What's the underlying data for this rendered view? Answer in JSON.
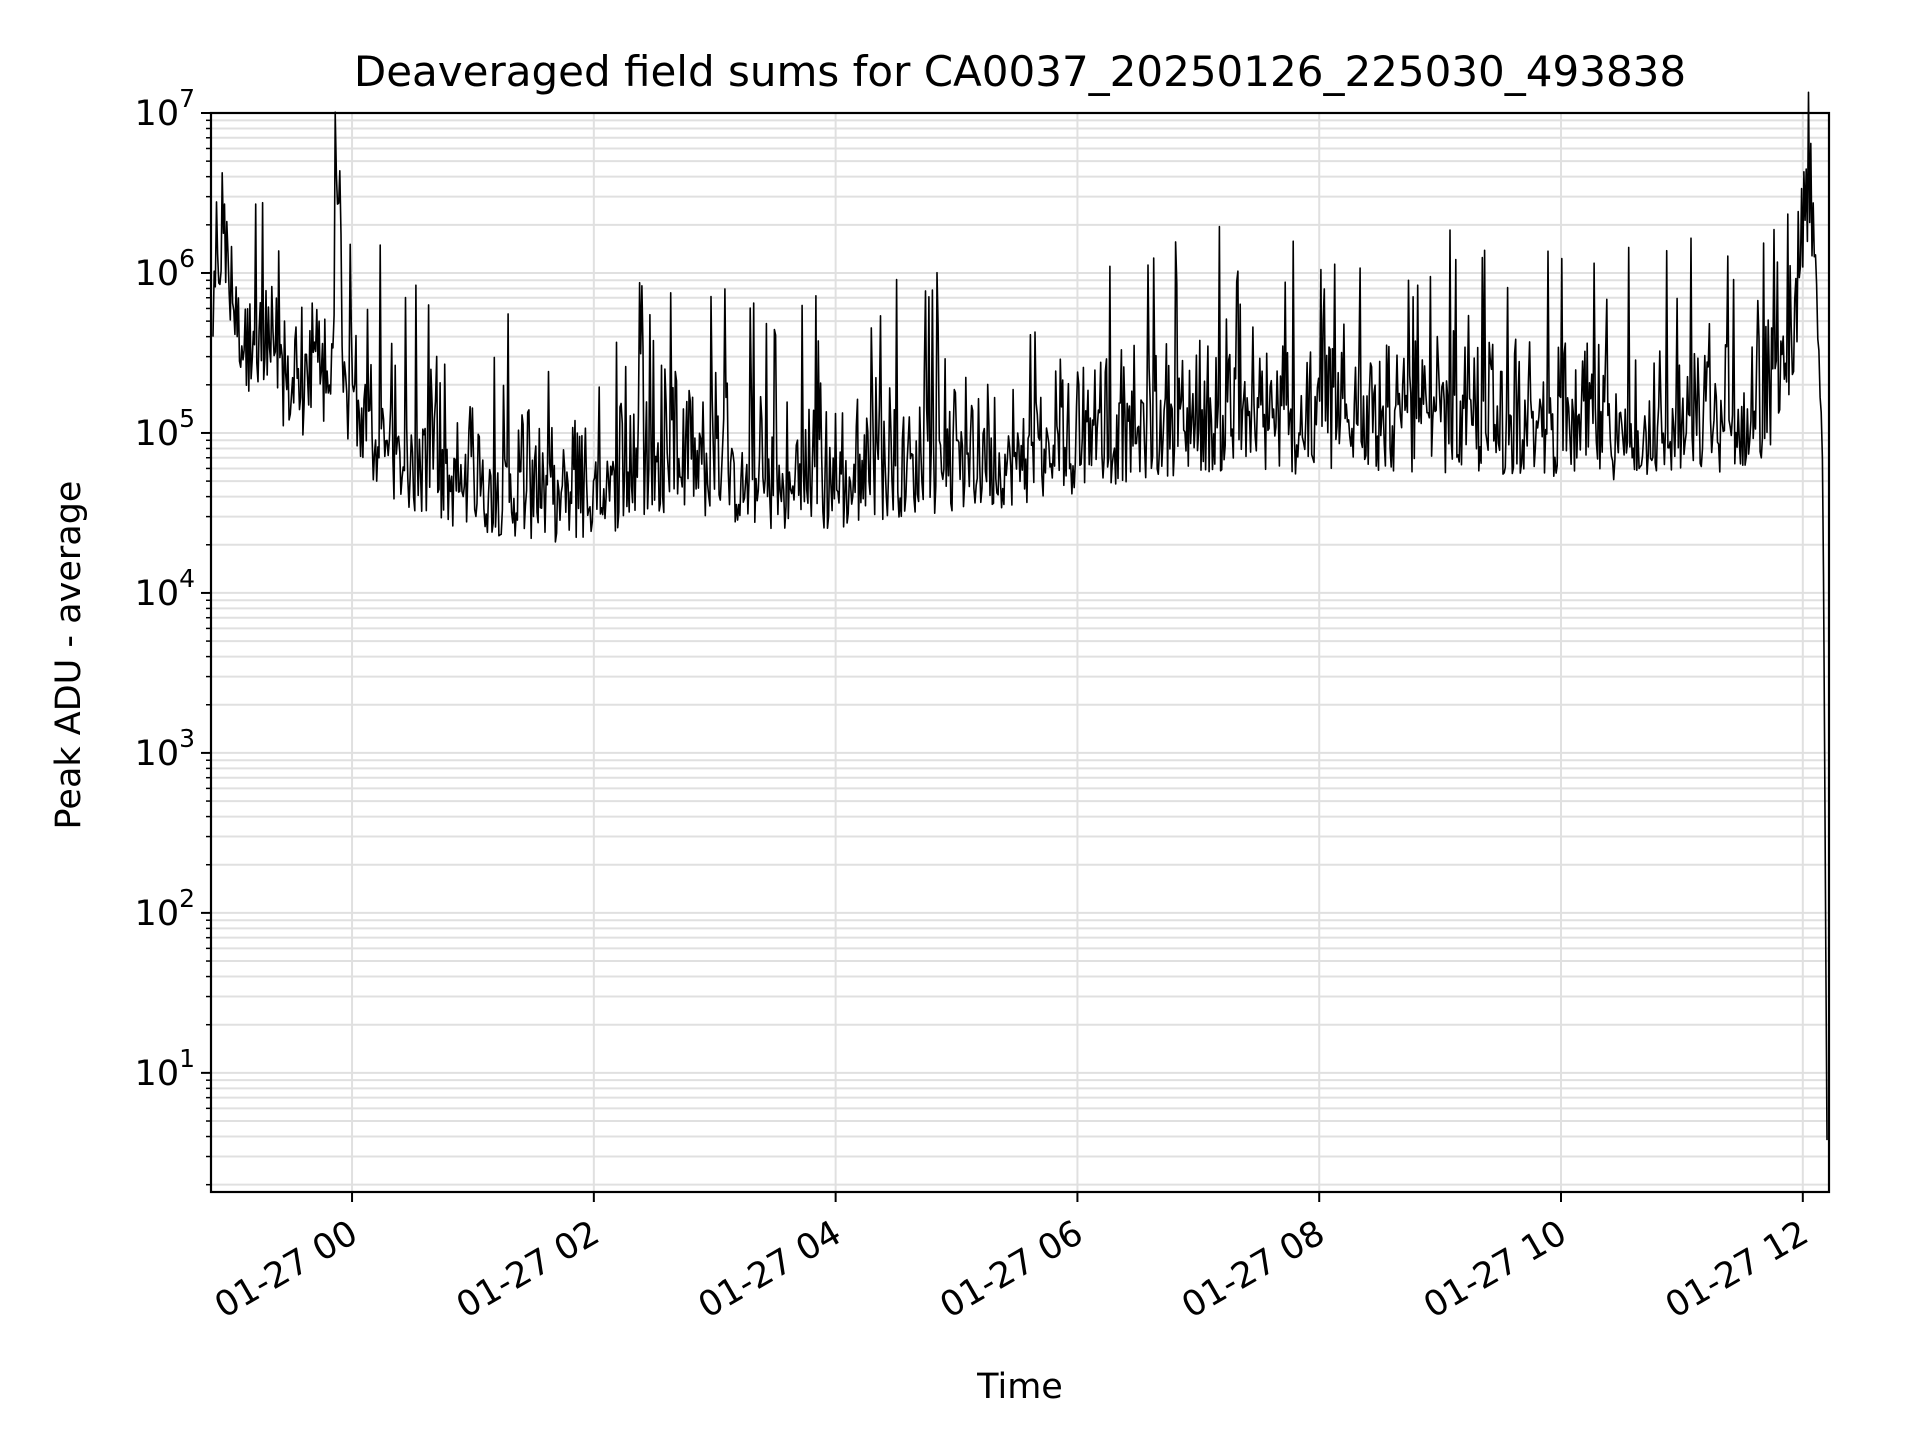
{
  "chart_data": {
    "type": "line",
    "title": "Deaveraged field sums for CA0037_20250126_225030_493838",
    "xlabel": "Time",
    "ylabel": "Peak ADU - average",
    "yscale": "log",
    "ylim": [
      1.8,
      10000000
    ],
    "xlim": [
      "2025-01-26 22:50",
      "2025-01-27 12:13"
    ],
    "x_ticks": [
      "01-27 00",
      "01-27 02",
      "01-27 04",
      "01-27 06",
      "01-27 08",
      "01-27 10",
      "01-27 12"
    ],
    "x_tick_values": [
      "2025-01-27 00:00",
      "2025-01-27 02:00",
      "2025-01-27 04:00",
      "2025-01-27 06:00",
      "2025-01-27 08:00",
      "2025-01-27 10:00",
      "2025-01-27 12:00"
    ],
    "y_ticks": [
      {
        "base": "10",
        "exp": "1",
        "value": 10
      },
      {
        "base": "10",
        "exp": "2",
        "value": 100
      },
      {
        "base": "10",
        "exp": "3",
        "value": 1000
      },
      {
        "base": "10",
        "exp": "4",
        "value": 10000
      },
      {
        "base": "10",
        "exp": "5",
        "value": 100000
      },
      {
        "base": "10",
        "exp": "6",
        "value": 1000000
      },
      {
        "base": "10",
        "exp": "7",
        "value": 10000000
      }
    ],
    "grid": true,
    "line_color": "#000000",
    "grid_color": "#e0e0e0",
    "series": [
      {
        "name": "",
        "x": [
          "2025-01-26 22:51",
          "2025-01-26 22:55",
          "2025-01-26 23:00",
          "2025-01-26 23:05",
          "2025-01-26 23:10",
          "2025-01-26 23:15",
          "2025-01-26 23:20",
          "2025-01-26 23:25",
          "2025-01-26 23:30",
          "2025-01-26 23:35",
          "2025-01-26 23:40",
          "2025-01-26 23:45",
          "2025-01-26 23:50",
          "2025-01-26 23:53",
          "2025-01-26 23:55",
          "2025-01-27 00:00",
          "2025-01-27 00:10",
          "2025-01-27 00:20",
          "2025-01-27 00:30",
          "2025-01-27 00:40",
          "2025-01-27 00:50",
          "2025-01-27 01:00",
          "2025-01-27 01:15",
          "2025-01-27 01:30",
          "2025-01-27 01:45",
          "2025-01-27 02:00",
          "2025-01-27 02:15",
          "2025-01-27 02:30",
          "2025-01-27 02:45",
          "2025-01-27 03:00",
          "2025-01-27 03:15",
          "2025-01-27 03:30",
          "2025-01-27 03:45",
          "2025-01-27 04:00",
          "2025-01-27 04:20",
          "2025-01-27 04:40",
          "2025-01-27 05:00",
          "2025-01-27 05:20",
          "2025-01-27 05:40",
          "2025-01-27 06:00",
          "2025-01-27 06:30",
          "2025-01-27 07:00",
          "2025-01-27 07:30",
          "2025-01-27 08:00",
          "2025-01-27 08:30",
          "2025-01-27 09:00",
          "2025-01-27 09:30",
          "2025-01-27 10:00",
          "2025-01-27 10:30",
          "2025-01-27 11:00",
          "2025-01-27 11:20",
          "2025-01-27 11:40",
          "2025-01-27 11:55",
          "2025-01-27 12:02",
          "2025-01-27 12:05",
          "2025-01-27 12:08",
          "2025-01-27 12:10",
          "2025-01-27 12:12"
        ],
        "values": [
          500000,
          1400000,
          700000,
          400000,
          300000,
          250000,
          220000,
          200000,
          180000,
          170000,
          180000,
          200000,
          220000,
          5800000,
          200000,
          120000,
          80000,
          70000,
          55000,
          50000,
          45000,
          42000,
          40000,
          38000,
          36000,
          38000,
          45000,
          55000,
          60000,
          50000,
          45000,
          42000,
          40000,
          42000,
          50000,
          55000,
          55000,
          60000,
          65000,
          75000,
          90000,
          100000,
          100000,
          95000,
          100000,
          100000,
          95000,
          95000,
          90000,
          95000,
          100000,
          110000,
          350000,
          1500000,
          2000000,
          500000,
          50000,
          3.8
        ]
      }
    ]
  }
}
